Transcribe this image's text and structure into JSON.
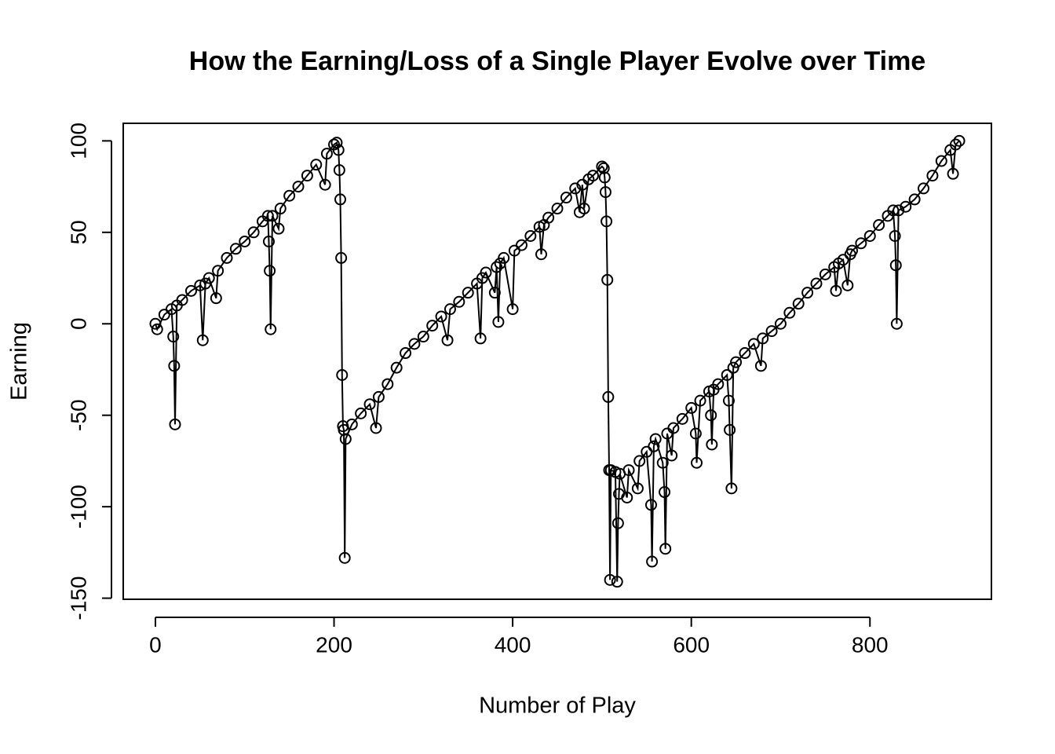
{
  "chart_data": {
    "type": "line",
    "title": "How the Earning/Loss of a Single Player Evolve over Time",
    "x_label": "Number of Play",
    "y_label": "Earning",
    "color": "#000000",
    "markers": true,
    "x": [
      0,
      2,
      10,
      18,
      20,
      21,
      22,
      24,
      30,
      40,
      50,
      53,
      56,
      60,
      68,
      70,
      80,
      90,
      100,
      110,
      120,
      126,
      127,
      128,
      129,
      131,
      138,
      140,
      150,
      160,
      170,
      180,
      190,
      192,
      200,
      203,
      205,
      206,
      207,
      208,
      209,
      210,
      211,
      212,
      213,
      220,
      230,
      240,
      247,
      250,
      260,
      270,
      280,
      290,
      300,
      310,
      320,
      327,
      330,
      340,
      350,
      360,
      364,
      366,
      370,
      380,
      382,
      384,
      386,
      390,
      400,
      402,
      410,
      420,
      430,
      432,
      435,
      440,
      450,
      460,
      470,
      475,
      478,
      480,
      485,
      490,
      500,
      502,
      503,
      504,
      505,
      506,
      507,
      508,
      509,
      510,
      515,
      517,
      518,
      519,
      520,
      528,
      530,
      540,
      542,
      550,
      555,
      556,
      558,
      560,
      568,
      570,
      571,
      573,
      578,
      580,
      590,
      600,
      605,
      606,
      610,
      620,
      622,
      623,
      625,
      630,
      640,
      642,
      643,
      645,
      647,
      650,
      660,
      670,
      678,
      680,
      690,
      700,
      710,
      720,
      730,
      740,
      750,
      760,
      762,
      765,
      770,
      775,
      778,
      780,
      790,
      800,
      810,
      820,
      826,
      828,
      829,
      830,
      832,
      840,
      850,
      860,
      870,
      880,
      890,
      893,
      896,
      900
    ],
    "values": [
      0,
      -3,
      5,
      8,
      -7,
      -23,
      -55,
      10,
      13,
      18,
      21,
      -9,
      22,
      25,
      14,
      29,
      36,
      41,
      45,
      50,
      56,
      59,
      45,
      29,
      -3,
      59,
      52,
      63,
      70,
      75,
      81,
      87,
      76,
      93,
      98,
      99,
      95,
      84,
      68,
      36,
      -28,
      -56,
      -58,
      -128,
      -63,
      -55,
      -49,
      -44,
      -57,
      -40,
      -33,
      -24,
      -16,
      -11,
      -7,
      -1,
      4,
      -9,
      8,
      12,
      17,
      22,
      -8,
      25,
      28,
      17,
      31,
      1,
      33,
      36,
      8,
      40,
      43,
      48,
      53,
      38,
      54,
      58,
      63,
      69,
      74,
      61,
      76,
      63,
      79,
      81,
      86,
      85,
      80,
      72,
      56,
      24,
      -40,
      -80,
      -140,
      -80,
      -81,
      -141,
      -109,
      -93,
      -82,
      -95,
      -80,
      -90,
      -75,
      -70,
      -99,
      -130,
      -67,
      -63,
      -76,
      -92,
      -123,
      -60,
      -72,
      -57,
      -52,
      -46,
      -60,
      -76,
      -42,
      -37,
      -50,
      -66,
      -36,
      -33,
      -28,
      -42,
      -58,
      -90,
      -24,
      -21,
      -16,
      -11,
      -23,
      -8,
      -4,
      0,
      6,
      11,
      17,
      22,
      27,
      31,
      18,
      33,
      35,
      21,
      38,
      40,
      44,
      48,
      54,
      59,
      62,
      48,
      32,
      0,
      62,
      64,
      68,
      74,
      81,
      89,
      95,
      82,
      98,
      100
    ],
    "xlim": [
      -36,
      936
    ],
    "ylim": [
      -150.6,
      109.6
    ],
    "xticks": [
      0,
      200,
      400,
      600,
      800
    ],
    "yticks": [
      -150,
      -100,
      -50,
      0,
      50,
      100
    ]
  }
}
